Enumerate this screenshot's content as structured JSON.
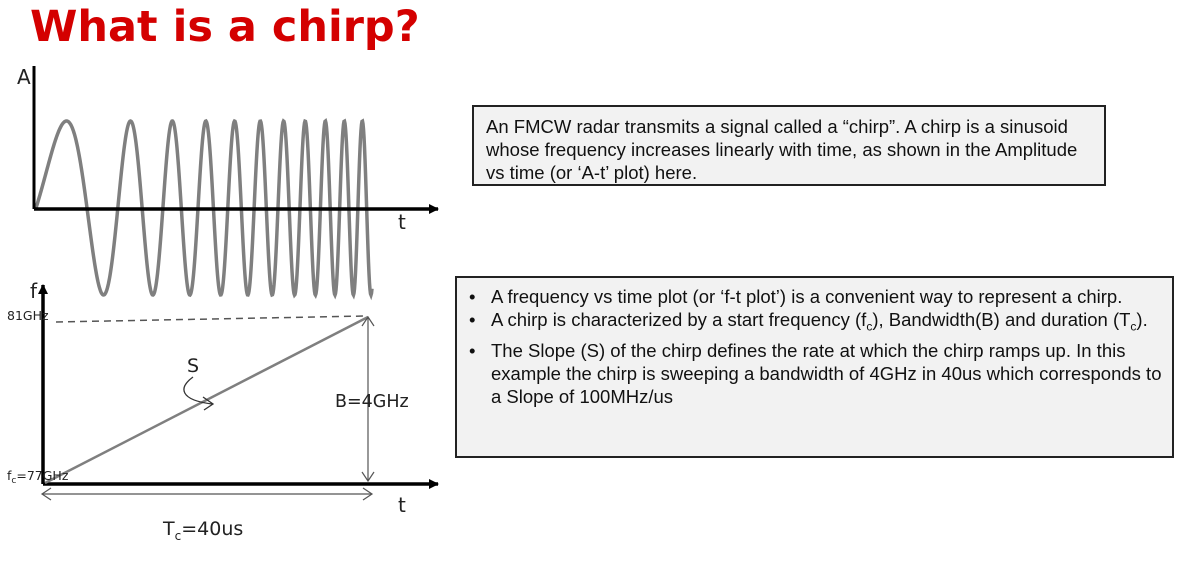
{
  "title": "What is a chirp?",
  "at_plot": {
    "y_axis_label": "A",
    "x_axis_label": "t"
  },
  "ft_plot": {
    "y_axis_label": "f",
    "x_axis_label": "t",
    "top_freq_label": "81GHz",
    "start_freq_label_prefix": "f",
    "start_freq_label_sub": "c",
    "start_freq_label_suffix": "=77GHz",
    "slope_label": "S",
    "bandwidth_label": "B=4GHz",
    "duration_label_prefix": "T",
    "duration_label_sub": "c",
    "duration_label_suffix": "=40us"
  },
  "description_box": {
    "text": "An FMCW radar transmits a signal called a “chirp”. A chirp is a sinusoid whose frequency  increases linearly with time, as shown  in the Amplitude vs time (or ‘A-t’ plot) here."
  },
  "bullets": [
    {
      "text": "A frequency vs time  plot (or ‘f-t plot’) is a convenient way to represent a chirp."
    },
    {
      "pre": " A chirp is characterized by a start frequency (f",
      "sub": "c",
      "mid": "), Bandwidth(B) and duration (T",
      "sub2": "c",
      "post": ")."
    },
    {
      "text": "The Slope (S) of the chirp defines the rate at which the chirp ramps up. In this example the chirp is sweeping a bandwidth of 4GHz in 40us which corresponds to a Slope of 100MHz/us"
    }
  ],
  "colors": {
    "title": "#d40000",
    "axes": "#000000",
    "signal": "#7f7f7f"
  }
}
